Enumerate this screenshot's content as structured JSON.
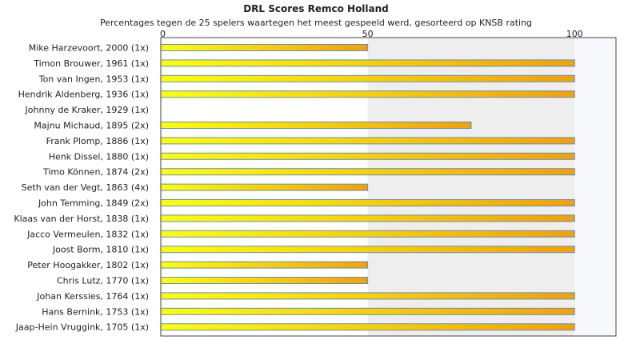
{
  "chart_data": {
    "type": "bar",
    "orientation": "horizontal",
    "title": "DRL Scores Remco Holland",
    "subtitle": "Percentages tegen de 25 spelers waartegen het meest gespeeld werd, gesorteerd op KNSB rating",
    "xlim": [
      0,
      110
    ],
    "x_ticks": [
      "0",
      "50",
      "100"
    ],
    "categories": [
      "Mike Harzevoort, 2000 (1x)",
      "Timon Brouwer, 1961 (1x)",
      "Ton van Ingen, 1953 (1x)",
      "Hendrik Aldenberg, 1936 (1x)",
      "Johnny de Kraker, 1929 (1x)",
      "Majnu Michaud, 1895 (2x)",
      "Frank Plomp, 1886 (1x)",
      "Henk Dissel, 1880 (1x)",
      "Timo Können, 1874 (2x)",
      "Seth van der Vegt, 1863 (4x)",
      "John Temming, 1849 (2x)",
      "Klaas van der Horst, 1838 (1x)",
      "Jacco Vermeulen, 1832 (1x)",
      "Joost Borm, 1810 (1x)",
      "Peter Hoogakker, 1802 (1x)",
      "Chris Lutz, 1770 (1x)",
      "Johan Kerssies, 1764 (1x)",
      "Hans Bernink, 1753 (1x)",
      "Jaap-Hein Vruggink, 1705 (1x)"
    ],
    "values": [
      50,
      100,
      100,
      100,
      0,
      75,
      100,
      100,
      100,
      50,
      100,
      100,
      100,
      100,
      50,
      50,
      100,
      100,
      100
    ],
    "colors": {
      "bar_start": "#ffff00",
      "bar_end": "#f5a000",
      "bar_edge": "#5b8fd6",
      "band_1": "#ffffff",
      "band_2": "#eeeeee",
      "band_3": "#f6f8fc"
    }
  }
}
